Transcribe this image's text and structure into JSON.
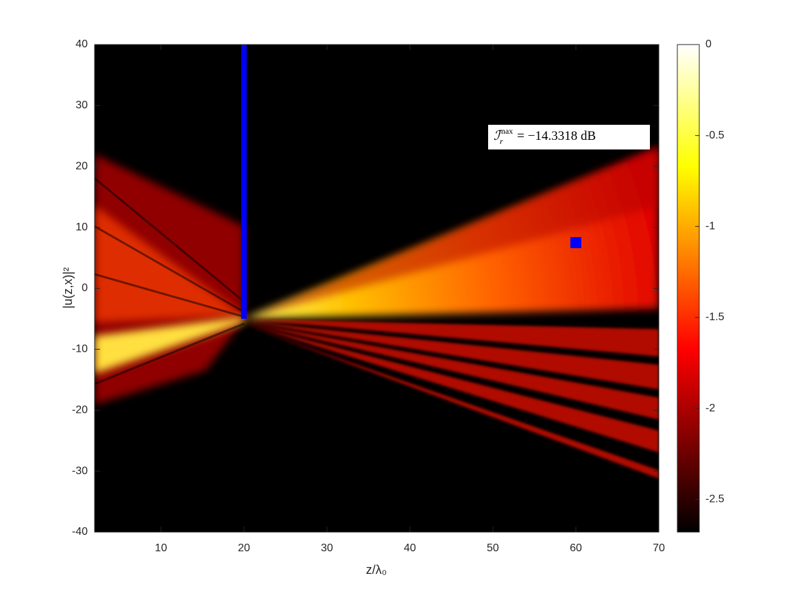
{
  "chart_data": {
    "type": "heatmap",
    "xlabel": "z/λ₀",
    "ylabel": "|u(z,x)|²",
    "xlim": [
      2,
      70
    ],
    "xticks": [
      10,
      20,
      30,
      40,
      50,
      60,
      70
    ],
    "ylim": [
      -40,
      40
    ],
    "yticks": [
      -40,
      -30,
      -20,
      -10,
      0,
      10,
      20,
      30,
      40
    ],
    "colormap": "hot",
    "clim": [
      -2.68,
      0
    ],
    "cticks": [
      -2.5,
      -2,
      -1.5,
      -1,
      -0.5,
      0
    ],
    "wall": {
      "x": 20,
      "y": [
        -5,
        40
      ],
      "color": "#0000ff"
    },
    "point": {
      "x": 60,
      "y": 7.5,
      "color": "#0000ff"
    },
    "annotation": {
      "symbol": "ℐ",
      "sub": "r",
      "sup": "max",
      "text": "= −14.3318 dB"
    },
    "grid": false
  }
}
